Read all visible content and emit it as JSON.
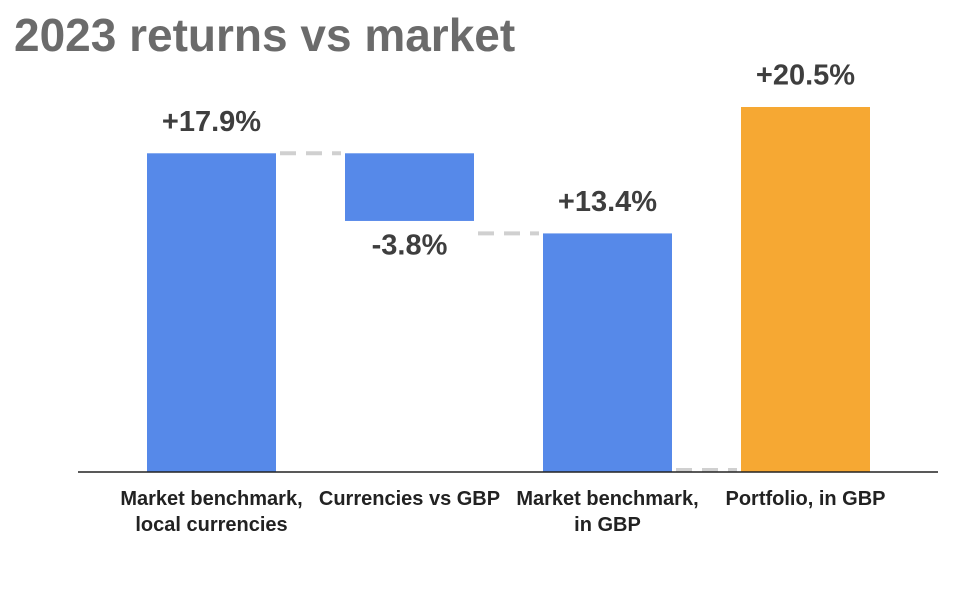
{
  "chart_data": {
    "type": "waterfall",
    "title": "2023 returns vs market",
    "categories": [
      "Market benchmark, local currencies",
      "Currencies vs GBP",
      "Market benchmark, in GBP",
      "Portfolio, in GBP"
    ],
    "values": [
      17.9,
      -3.8,
      13.4,
      20.5
    ],
    "value_labels": [
      "+17.9%",
      "-3.8%",
      "+13.4%",
      "+20.5%"
    ],
    "measures": [
      "relative",
      "relative",
      "total",
      "total"
    ],
    "colors": [
      "#5689e9",
      "#5689e9",
      "#5689e9",
      "#f6a833"
    ]
  }
}
